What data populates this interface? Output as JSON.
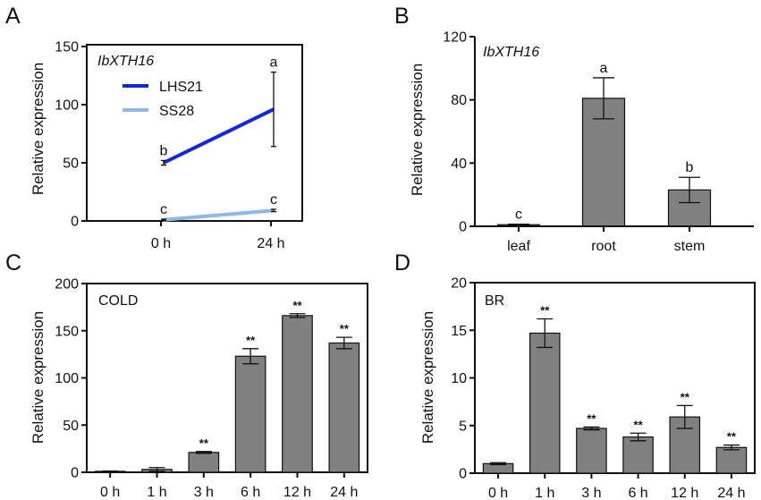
{
  "colors": {
    "lhs21": "#1428D8",
    "ss28": "#8EB8E8",
    "bar": "#808080",
    "axis": "#111111"
  },
  "chart_data": [
    {
      "panel": "A",
      "type": "line",
      "title": "IbXTH16",
      "ylabel": "Relative expression",
      "xlabel": "",
      "categories": [
        "0 h",
        "24 h"
      ],
      "ylim": [
        0,
        150
      ],
      "yticks": [
        "0",
        "50",
        "100",
        "150"
      ],
      "legend": "top-left",
      "series": [
        {
          "name": "LHS21",
          "values": [
            50,
            96
          ],
          "errors": [
            2,
            32
          ],
          "letters": [
            "b",
            "a"
          ]
        },
        {
          "name": "SS28",
          "values": [
            1,
            9
          ],
          "errors": [
            0.5,
            1
          ],
          "letters": [
            "c",
            "c"
          ]
        }
      ]
    },
    {
      "panel": "B",
      "type": "bar",
      "title": "IbXTH16",
      "ylabel": "Relative expression",
      "categories": [
        "leaf",
        "root",
        "stem"
      ],
      "values": [
        1,
        81,
        23
      ],
      "errors": [
        0.3,
        13,
        8
      ],
      "letters": [
        "c",
        "a",
        "b"
      ],
      "ylim": [
        0,
        120
      ],
      "yticks": [
        "0",
        "40",
        "80",
        "120"
      ]
    },
    {
      "panel": "C",
      "type": "bar",
      "title": "COLD",
      "ylabel": "Relative expression",
      "categories": [
        "0 h",
        "1 h",
        "3 h",
        "6 h",
        "12 h",
        "24 h"
      ],
      "values": [
        1,
        3,
        21,
        123,
        166,
        137
      ],
      "errors": [
        0.3,
        2,
        1,
        8,
        2,
        6
      ],
      "significance": [
        "",
        "",
        "**",
        "**",
        "**",
        "**"
      ],
      "ylim": [
        0,
        200
      ],
      "yticks": [
        "0",
        "50",
        "100",
        "150",
        "200"
      ]
    },
    {
      "panel": "D",
      "type": "bar",
      "title": "BR",
      "ylabel": "Relative expression",
      "categories": [
        "0 h",
        "1 h",
        "3 h",
        "6 h",
        "12 h",
        "24 h"
      ],
      "values": [
        1,
        14.7,
        4.7,
        3.8,
        5.9,
        2.7
      ],
      "errors": [
        0.1,
        1.5,
        0.15,
        0.4,
        1.2,
        0.25
      ],
      "significance": [
        "",
        "**",
        "**",
        "**",
        "**",
        "**"
      ],
      "ylim": [
        0,
        20
      ],
      "yticks": [
        "0",
        "5",
        "10",
        "15",
        "20"
      ]
    }
  ]
}
